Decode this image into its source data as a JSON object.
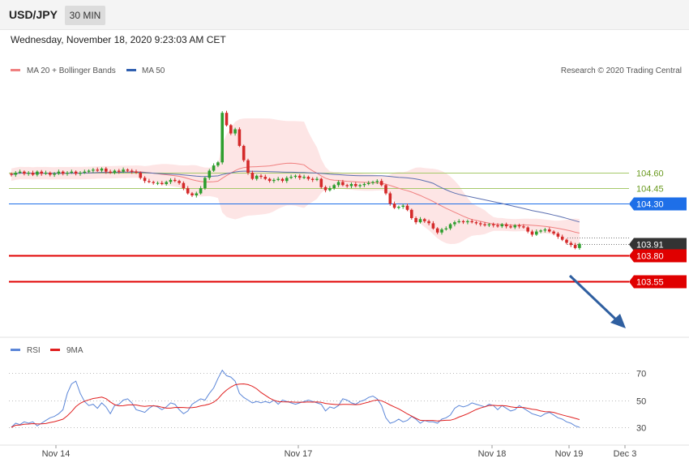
{
  "header": {
    "symbol": "USD/JPY",
    "timeframe": "30 MIN"
  },
  "timestamp": "Wednesday, November 18, 2020 9:23:03 AM CET",
  "legend_main": [
    {
      "label": "MA 20 + Bollinger Bands",
      "color": "#f08080"
    },
    {
      "label": "MA 50",
      "color": "#3060b0"
    }
  ],
  "credit": "Research © 2020 Trading Central",
  "legend_rsi": [
    {
      "label": "RSI",
      "color": "#5b86d8"
    },
    {
      "label": "9MA",
      "color": "#e02020"
    }
  ],
  "colors": {
    "up": "#2e9e2e",
    "down": "#d42a2a",
    "band": "#fde0e0",
    "ma20": "#f08080",
    "ma50": "#5b6fb0"
  },
  "chart_data": [
    {
      "type": "candlestick",
      "x_ticks": [
        "Nov 14",
        "Nov 17",
        "Nov 18",
        "Nov 19",
        "Dec 3"
      ],
      "levels": [
        {
          "value": 104.6,
          "label": "104.60",
          "kind": "resistance",
          "color": "#a6c96a"
        },
        {
          "value": 104.45,
          "label": "104.45",
          "kind": "resistance",
          "color": "#a6c96a"
        },
        {
          "value": 104.3,
          "label": "104.30",
          "kind": "pivot",
          "color": "#1e6fe8"
        },
        {
          "value": 103.91,
          "label": "103.91",
          "kind": "last",
          "color": "#333333"
        },
        {
          "value": 103.8,
          "label": "103.80",
          "kind": "support",
          "color": "#e00000"
        },
        {
          "value": 103.55,
          "label": "103.55",
          "kind": "support",
          "color": "#e00000"
        }
      ],
      "close": [
        104.58,
        104.6,
        104.61,
        104.59,
        104.6,
        104.58,
        104.61,
        104.59,
        104.6,
        104.58,
        104.59,
        104.61,
        104.59,
        104.6,
        104.61,
        104.59,
        104.6,
        104.61,
        104.62,
        104.63,
        104.62,
        104.64,
        104.61,
        104.6,
        104.62,
        104.61,
        104.63,
        104.62,
        104.61,
        104.6,
        104.55,
        104.52,
        104.51,
        104.5,
        104.5,
        104.49,
        104.51,
        104.53,
        104.52,
        104.5,
        104.45,
        104.4,
        104.38,
        104.4,
        104.45,
        104.55,
        104.62,
        104.67,
        104.7,
        105.18,
        105.06,
        104.98,
        105.02,
        104.86,
        104.72,
        104.6,
        104.54,
        104.57,
        104.56,
        104.54,
        104.52,
        104.53,
        104.54,
        104.52,
        104.55,
        104.56,
        104.57,
        104.55,
        104.56,
        104.54,
        104.53,
        104.54,
        104.46,
        104.43,
        104.45,
        104.48,
        104.51,
        104.48,
        104.47,
        104.49,
        104.47,
        104.48,
        104.49,
        104.5,
        104.51,
        104.52,
        104.48,
        104.4,
        104.3,
        104.26,
        104.27,
        104.28,
        104.24,
        104.16,
        104.12,
        104.15,
        104.13,
        104.11,
        104.06,
        104.02,
        104.05,
        104.06,
        104.1,
        104.12,
        104.13,
        104.12,
        104.13,
        104.12,
        104.11,
        104.1,
        104.09,
        104.1,
        104.09,
        104.08,
        104.1,
        104.08,
        104.07,
        104.09,
        104.08,
        104.07,
        104.03,
        104.0,
        104.03,
        104.04,
        104.05,
        104.03,
        104.01,
        103.98,
        103.95,
        103.92,
        103.9,
        103.87,
        103.91
      ],
      "rsi": [
        30,
        33,
        32,
        34,
        33,
        34,
        31,
        33,
        35,
        37,
        38,
        40,
        43,
        55,
        62,
        64,
        55,
        49,
        46,
        47,
        44,
        48,
        45,
        40,
        46,
        47,
        50,
        51,
        48,
        43,
        42,
        41,
        44,
        46,
        45,
        43,
        45,
        48,
        47,
        43,
        40,
        42,
        47,
        49,
        51,
        50,
        55,
        59,
        66,
        72,
        68,
        67,
        64,
        55,
        52,
        50,
        48,
        49,
        48,
        49,
        48,
        50,
        47,
        50,
        49,
        48,
        47,
        48,
        49,
        50,
        49,
        48,
        47,
        42,
        45,
        44,
        46,
        51,
        50,
        48,
        47,
        49,
        50,
        52,
        53,
        51,
        46,
        37,
        33,
        34,
        36,
        34,
        35,
        38,
        36,
        33,
        35,
        34,
        34,
        33,
        36,
        37,
        39,
        44,
        46,
        45,
        46,
        48,
        47,
        46,
        45,
        47,
        46,
        43,
        46,
        44,
        42,
        43,
        46,
        44,
        42,
        40,
        39,
        38,
        40,
        41,
        39,
        37,
        36,
        34,
        33,
        31,
        30
      ]
    }
  ]
}
